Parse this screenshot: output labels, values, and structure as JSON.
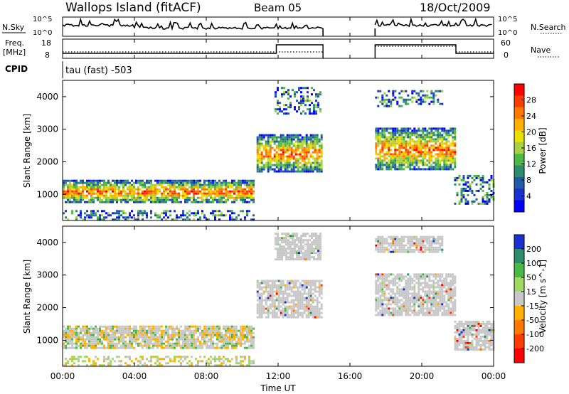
{
  "header": {
    "station": "Wallops Island (fitACF)",
    "beam": "Beam 05",
    "date": "18/Oct/2009"
  },
  "strips": {
    "nsky_label": "N.Sky",
    "nsearch_label": "N.Search",
    "freq_label_1": "Freq.",
    "freq_label_2": "[MHz]",
    "nave_label": "Nave",
    "cpid_label": "CPID",
    "cpid_value": "tau (fast) -503",
    "noise_ticks_left": [
      "10^5",
      "10^0"
    ],
    "noise_ticks_right": [
      "10^5",
      "10^0"
    ],
    "freq_ticks": [
      "18",
      "8"
    ],
    "nave_ticks": [
      "60",
      "0"
    ]
  },
  "chart_data": [
    {
      "type": "heatmap",
      "title": "",
      "xlabel": "",
      "ylabel": "Slant Range [km]",
      "x_ticks": [
        "00:00",
        "04:00",
        "08:00",
        "12:00",
        "16:00",
        "20:00",
        "00:00"
      ],
      "y_ticks": [
        "1000",
        "2000",
        "3000",
        "4000"
      ],
      "ylim": [
        200,
        4500
      ],
      "colorbar": {
        "label": "Power [dB]",
        "ticks": [
          "28",
          "24",
          "20",
          "16",
          "12",
          "8",
          "4"
        ],
        "colors": [
          "#ff0000",
          "#ff3c00",
          "#ff7800",
          "#ffb000",
          "#e8e000",
          "#a8d040",
          "#4cb848",
          "#2e8c6c",
          "#205aa8",
          "#1a30d0",
          "#0000ff"
        ]
      },
      "regions": [
        {
          "t0": 0.0,
          "t1": 10.6,
          "r0": 750,
          "r1": 1450,
          "level": "high"
        },
        {
          "t0": 0.0,
          "t1": 10.6,
          "r0": 200,
          "r1": 520,
          "level": "mixed"
        },
        {
          "t0": 10.8,
          "t1": 14.4,
          "r0": 1700,
          "r1": 2850,
          "level": "high"
        },
        {
          "t0": 11.8,
          "t1": 14.3,
          "r0": 3500,
          "r1": 4300,
          "level": "low"
        },
        {
          "t0": 17.4,
          "t1": 21.9,
          "r0": 1750,
          "r1": 3050,
          "level": "high"
        },
        {
          "t0": 17.4,
          "t1": 21.2,
          "r0": 3700,
          "r1": 4200,
          "level": "low"
        },
        {
          "t0": 21.8,
          "t1": 24.0,
          "r0": 700,
          "r1": 1600,
          "level": "mixed"
        }
      ]
    },
    {
      "type": "heatmap",
      "title": "",
      "xlabel": "Time UT",
      "ylabel": "Slant Range [km]",
      "x_ticks": [
        "00:00",
        "04:00",
        "08:00",
        "12:00",
        "16:00",
        "20:00",
        "00:00"
      ],
      "y_ticks": [
        "1000",
        "2000",
        "3000",
        "4000"
      ],
      "ylim": [
        200,
        4500
      ],
      "colorbar": {
        "label": "Velocity [m s^-1]",
        "ticks": [
          "200",
          "100",
          "50",
          "15",
          "-15",
          "-50",
          "-100",
          "-200"
        ],
        "colors": [
          "#1a30d0",
          "#2e8c6c",
          "#4cb848",
          "#a0d860",
          "#c8c8c8",
          "#ffb000",
          "#ff7800",
          "#ff3c00",
          "#ff0000"
        ]
      },
      "regions": [
        {
          "t0": 0.0,
          "t1": 10.6,
          "r0": 750,
          "r1": 1450,
          "level": "gray-orange"
        },
        {
          "t0": 0.0,
          "t1": 10.6,
          "r0": 200,
          "r1": 520,
          "level": "mixed"
        },
        {
          "t0": 10.8,
          "t1": 14.4,
          "r0": 1700,
          "r1": 2850,
          "level": "gray"
        },
        {
          "t0": 11.8,
          "t1": 14.3,
          "r0": 3500,
          "r1": 4300,
          "level": "gray"
        },
        {
          "t0": 17.4,
          "t1": 21.9,
          "r0": 1750,
          "r1": 3050,
          "level": "gray"
        },
        {
          "t0": 17.4,
          "t1": 21.2,
          "r0": 3700,
          "r1": 4200,
          "level": "gray"
        },
        {
          "t0": 21.8,
          "t1": 24.0,
          "r0": 700,
          "r1": 1600,
          "level": "gray"
        }
      ]
    }
  ]
}
